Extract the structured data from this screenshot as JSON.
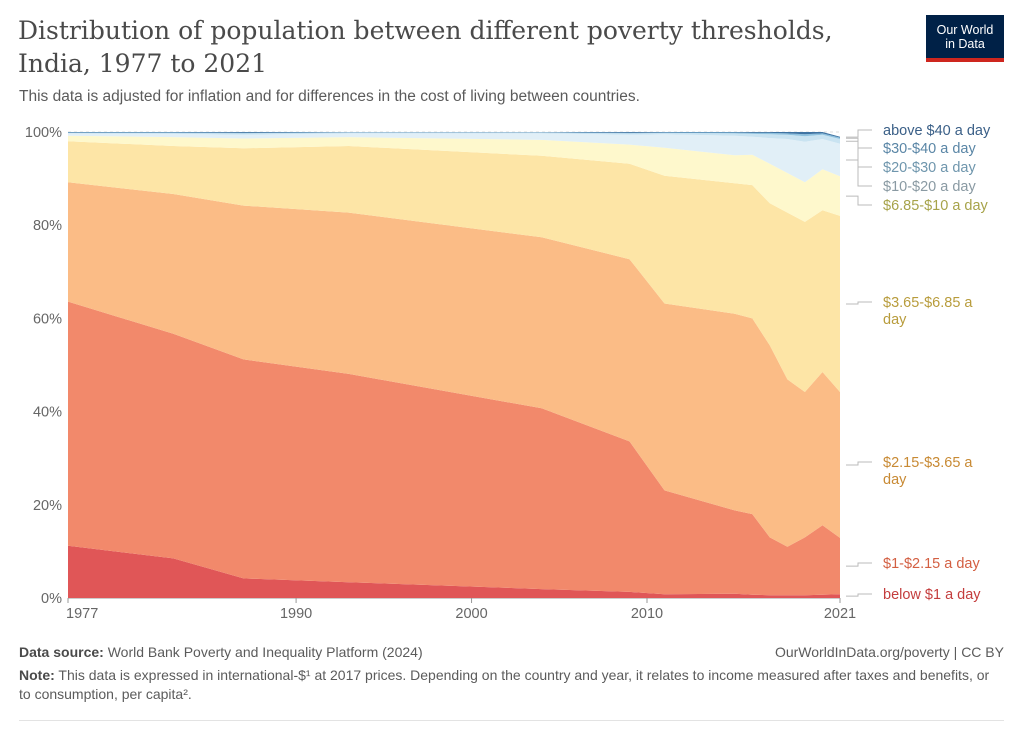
{
  "header": {
    "title": "Distribution of population between different poverty thresholds, India, 1977 to 2021",
    "subtitle": "This data is adjusted for inflation and for differences in the cost of living between countries.",
    "logo_line1": "Our World",
    "logo_line2": "in Data"
  },
  "footer": {
    "source_label": "Data source:",
    "source_text": "World Bank Poverty and Inequality Platform (2024)",
    "credit": "OurWorldInData.org/poverty | CC BY",
    "note_label": "Note:",
    "note_text": "This data is expressed in international-$¹ at 2017 prices. Depending on the country and year, it relates to income measured after taxes and benefits, or to consumption, per capita²."
  },
  "chart_data": {
    "type": "area",
    "stacked": true,
    "x": [
      1977,
      1983,
      1987,
      1993,
      2004,
      2009,
      2011,
      2015,
      2016,
      2017,
      2018,
      2019,
      2020,
      2021
    ],
    "xlim": [
      1977,
      2021
    ],
    "ylim": [
      0,
      100
    ],
    "y_unit": "%",
    "y_ticks": [
      "0%",
      "20%",
      "40%",
      "60%",
      "80%",
      "100%"
    ],
    "y_tick_values": [
      0,
      20,
      40,
      60,
      80,
      100
    ],
    "x_ticks": [
      "1977",
      "1990",
      "2000",
      "2010",
      "2021"
    ],
    "x_tick_values": [
      1977,
      1990,
      2000,
      2010,
      2021
    ],
    "series": [
      {
        "name": "below $1 a day",
        "color": "#e05657",
        "label_color": "#c43d3d",
        "values": [
          11.2,
          8.5,
          4.2,
          3.4,
          1.9,
          1.3,
          0.8,
          0.9,
          0.7,
          0.6,
          0.6,
          0.6,
          0.7,
          0.8
        ]
      },
      {
        "name": "$1-$2.15 a day",
        "color": "#f2896b",
        "label_color": "#d35f42",
        "values": [
          52.4,
          48.2,
          47.0,
          44.7,
          38.8,
          32.3,
          22.3,
          17.9,
          17.3,
          12.4,
          10.4,
          12.4,
          14.9,
          12.1
        ]
      },
      {
        "name": "$2.15-$3.65 a day",
        "color": "#fbbc86",
        "label_color": "#c88a34",
        "values": [
          25.6,
          30.0,
          33.0,
          34.6,
          36.7,
          39.1,
          40.1,
          42.2,
          42.0,
          41.2,
          35.9,
          31.2,
          32.9,
          31.3
        ]
      },
      {
        "name": "$3.65-$6.85 a day",
        "color": "#fde5a6",
        "label_color": "#b89c3c",
        "values": [
          8.8,
          10.3,
          12.3,
          14.3,
          17.5,
          20.5,
          27.4,
          28.0,
          28.6,
          30.5,
          35.8,
          36.5,
          34.7,
          37.8
        ]
      },
      {
        "name": "$6.85-$10 a day",
        "color": "#fef8cc",
        "label_color": "#a7a34a",
        "values": [
          1.2,
          1.9,
          2.1,
          1.9,
          3.4,
          4.1,
          6.0,
          6.0,
          6.5,
          8.5,
          8.5,
          8.5,
          8.8,
          8.5
        ]
      },
      {
        "name": "$10-$20 a day",
        "color": "#e1eff7",
        "label_color": "#8a9aa3",
        "values": [
          0.5,
          0.7,
          0.8,
          0.8,
          1.4,
          2.1,
          2.9,
          4.2,
          3.9,
          5.5,
          7.3,
          8.7,
          6.5,
          7.0
        ]
      },
      {
        "name": "$20-$30 a day",
        "color": "#c9e3f1",
        "label_color": "#6f96ad",
        "values": [
          0.1,
          0.2,
          0.3,
          0.2,
          0.2,
          0.3,
          0.3,
          0.5,
          0.6,
          0.8,
          0.9,
          1.2,
          0.9,
          1.0
        ]
      },
      {
        "name": "$30-$40 a day",
        "color": "#8ec1de",
        "label_color": "#5a86a6",
        "values": [
          0.1,
          0.1,
          0.1,
          0.05,
          0.05,
          0.1,
          0.1,
          0.2,
          0.2,
          0.3,
          0.3,
          0.4,
          0.3,
          0.3
        ]
      },
      {
        "name": "above $40 a day",
        "color": "#3f74a3",
        "label_color": "#3a5f87",
        "values": [
          0.1,
          0.1,
          0.2,
          0.05,
          0.05,
          0.2,
          0.1,
          0.1,
          0.2,
          0.2,
          0.3,
          0.5,
          0.3,
          0.2
        ]
      }
    ]
  }
}
